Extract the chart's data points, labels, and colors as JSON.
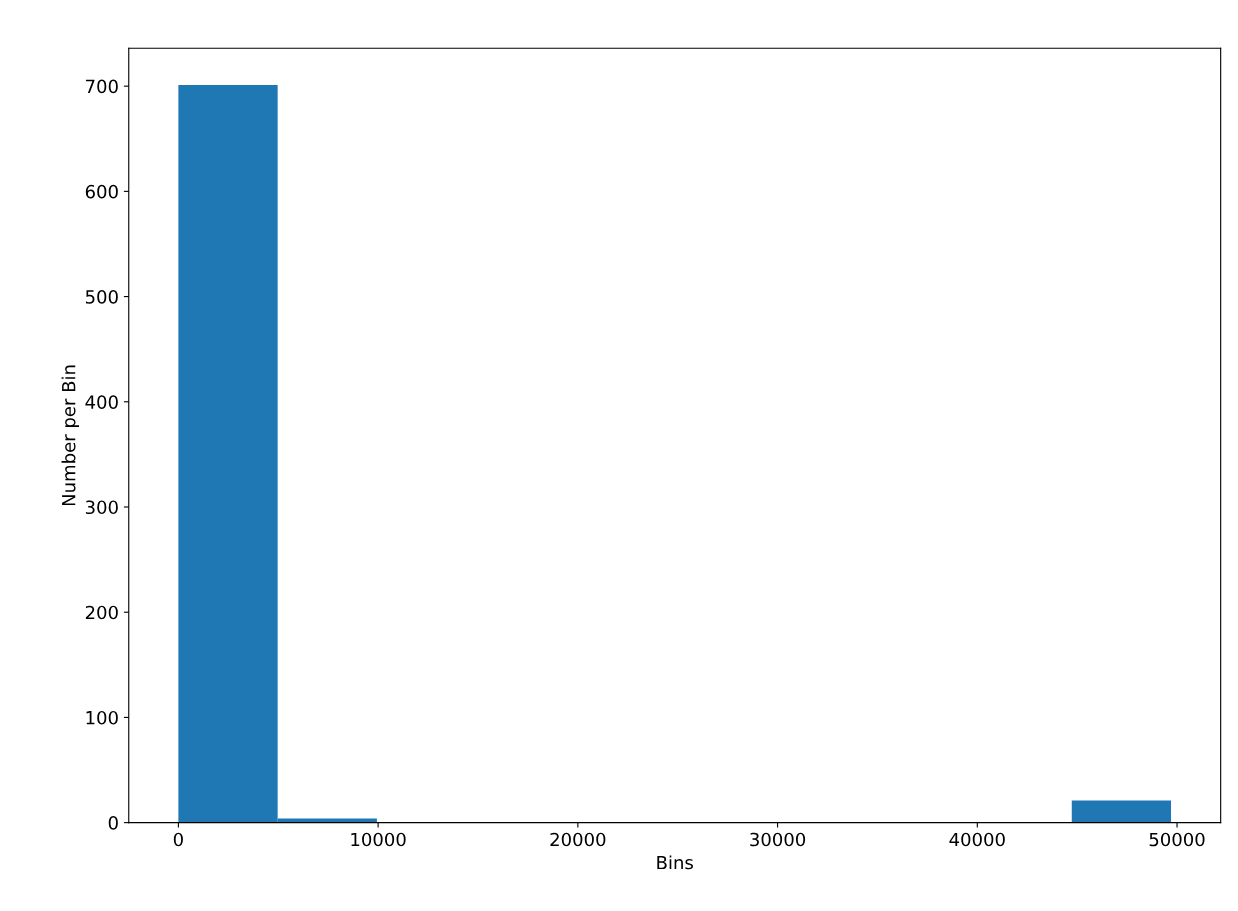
{
  "chart_data": {
    "type": "histogram",
    "xlabel": "Bins",
    "ylabel": "Number per Bin",
    "bins": [
      0,
      4970,
      9940,
      14910,
      19880,
      24850,
      29820,
      34790,
      39760,
      44730,
      49700
    ],
    "values": [
      701,
      4,
      0,
      0,
      0,
      0,
      0,
      0,
      0,
      21
    ],
    "color": "#1f77b4",
    "xlim": [
      -2485,
      52185
    ],
    "xticks": [
      0,
      10000,
      20000,
      30000,
      40000,
      50000
    ],
    "ylim": [
      0,
      736
    ],
    "yticks": [
      0,
      100,
      200,
      300,
      400,
      500,
      600,
      700
    ],
    "grid": false
  }
}
